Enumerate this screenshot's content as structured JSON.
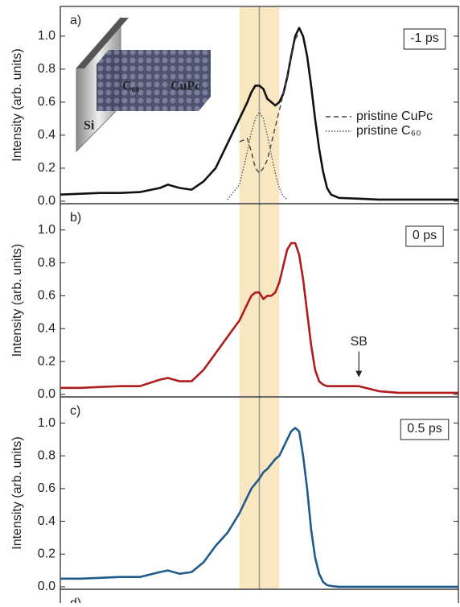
{
  "chart_data": [
    {
      "type": "line",
      "panel_label": "a)",
      "time_label": "-1 ps",
      "y_label": "Intensity (arb. units)",
      "x": [
        0,
        5,
        10,
        15,
        20,
        25,
        27,
        30,
        33,
        36,
        39,
        42,
        45,
        47,
        48,
        49,
        50,
        51,
        52,
        53,
        54,
        55,
        56,
        57,
        58,
        59,
        60,
        61,
        62,
        63,
        64,
        65,
        66,
        67,
        68,
        70,
        75,
        80,
        85,
        90,
        95,
        100
      ],
      "xlim": [
        0,
        100
      ],
      "ylim": [
        -0.015,
        1.18
      ],
      "yticks": [
        {
          "value": 0,
          "label": "0.0"
        },
        0.2,
        0.4,
        0.6,
        0.8,
        {
          "value": 1,
          "label": "1.0"
        }
      ],
      "highlight_band": [
        45,
        55
      ],
      "marker_line": 50,
      "inset_labels": [
        "Si",
        "C₆₀",
        "CuPc"
      ],
      "series": [
        {
          "color": "#111111",
          "dash": "solid",
          "values": [
            0.04,
            0.045,
            0.05,
            0.05,
            0.055,
            0.08,
            0.1,
            0.08,
            0.07,
            0.12,
            0.2,
            0.35,
            0.5,
            0.6,
            0.66,
            0.7,
            0.7,
            0.68,
            0.62,
            0.6,
            0.58,
            0.6,
            0.65,
            0.75,
            0.88,
            1.0,
            1.05,
            1.0,
            0.88,
            0.7,
            0.5,
            0.32,
            0.18,
            0.08,
            0.04,
            0.02,
            0.015,
            0.01,
            0.01,
            0.01,
            0.01,
            0.01
          ]
        },
        {
          "name": "pristine CuPc",
          "color": "#444444",
          "dash": "dashed",
          "values": [
            null,
            null,
            null,
            null,
            null,
            null,
            null,
            null,
            null,
            null,
            null,
            null,
            0.36,
            0.38,
            0.3,
            0.2,
            0.17,
            0.2,
            0.25,
            0.35,
            0.45,
            0.55,
            0.65,
            0.75,
            0.88,
            0.98,
            1.02,
            null,
            null,
            null,
            null,
            null,
            null,
            null,
            null,
            null,
            null,
            null,
            null,
            null,
            null,
            null
          ]
        },
        {
          "name": "pristine C₆₀",
          "color": "#555555",
          "dash": "dotted",
          "values": [
            null,
            null,
            null,
            null,
            null,
            null,
            null,
            null,
            null,
            null,
            null,
            0.01,
            0.1,
            0.3,
            0.42,
            0.5,
            0.54,
            0.5,
            0.4,
            0.28,
            0.17,
            0.08,
            0.03,
            0.01,
            null,
            null,
            null,
            null,
            null,
            null,
            null,
            null,
            null,
            null,
            null,
            null,
            null,
            null,
            null,
            null,
            null,
            null
          ]
        }
      ]
    },
    {
      "type": "line",
      "panel_label": "b)",
      "time_label": "0 ps",
      "y_label": "Intensity (arb. units)",
      "x": [
        0,
        5,
        10,
        15,
        20,
        25,
        27,
        30,
        33,
        36,
        39,
        42,
        45,
        47,
        48,
        49,
        50,
        51,
        52,
        53,
        54,
        55,
        56,
        57,
        58,
        59,
        60,
        61,
        62,
        63,
        64,
        65,
        66,
        67,
        68,
        70,
        75,
        80,
        85,
        90,
        95,
        100
      ],
      "xlim": [
        0,
        100
      ],
      "ylim": [
        -0.015,
        1.16
      ],
      "yticks": [
        {
          "value": 0,
          "label": "0.0"
        },
        0.2,
        0.4,
        0.6,
        0.8,
        {
          "value": 1,
          "label": "1.0"
        }
      ],
      "highlight_band": [
        45,
        55
      ],
      "marker_line": 50,
      "annotation": {
        "text": "SB",
        "x": 75,
        "y": 0.32
      },
      "series": [
        {
          "color": "#b01c1c",
          "dash": "solid",
          "values": [
            0.04,
            0.04,
            0.045,
            0.05,
            0.05,
            0.09,
            0.1,
            0.08,
            0.08,
            0.15,
            0.25,
            0.35,
            0.45,
            0.55,
            0.6,
            0.62,
            0.62,
            0.58,
            0.6,
            0.6,
            0.62,
            0.68,
            0.78,
            0.88,
            0.92,
            0.92,
            0.85,
            0.7,
            0.5,
            0.3,
            0.15,
            0.08,
            0.06,
            0.05,
            0.05,
            0.05,
            0.05,
            0.02,
            0.01,
            0.01,
            0.01,
            0.01
          ]
        }
      ]
    },
    {
      "type": "line",
      "panel_label": "c)",
      "time_label": "0.5 ps",
      "y_label": "Intensity (arb. units)",
      "x": [
        0,
        5,
        10,
        15,
        20,
        25,
        27,
        30,
        33,
        36,
        39,
        42,
        45,
        47,
        48,
        49,
        50,
        51,
        52,
        53,
        54,
        55,
        56,
        57,
        58,
        59,
        60,
        61,
        62,
        63,
        64,
        65,
        66,
        67,
        68,
        70,
        75,
        80,
        85,
        90,
        95,
        100
      ],
      "xlim": [
        0,
        100
      ],
      "ylim": [
        -0.015,
        1.16
      ],
      "yticks": [
        {
          "value": 0,
          "label": "0.0"
        },
        0.2,
        0.4,
        0.6,
        0.8,
        {
          "value": 1,
          "label": "1.0"
        }
      ],
      "highlight_band": [
        45,
        55
      ],
      "marker_line": 50,
      "series": [
        {
          "color": "#1f5a8c",
          "dash": "solid",
          "values": [
            0.05,
            0.05,
            0.055,
            0.06,
            0.06,
            0.09,
            0.1,
            0.08,
            0.09,
            0.15,
            0.25,
            0.33,
            0.45,
            0.55,
            0.6,
            0.63,
            0.66,
            0.7,
            0.72,
            0.75,
            0.78,
            0.8,
            0.85,
            0.9,
            0.95,
            0.97,
            0.95,
            0.8,
            0.6,
            0.35,
            0.18,
            0.08,
            0.03,
            0.01,
            0.005,
            0,
            0,
            0,
            0,
            0,
            0,
            0
          ]
        }
      ]
    },
    {
      "panel_label": "d)"
    }
  ]
}
